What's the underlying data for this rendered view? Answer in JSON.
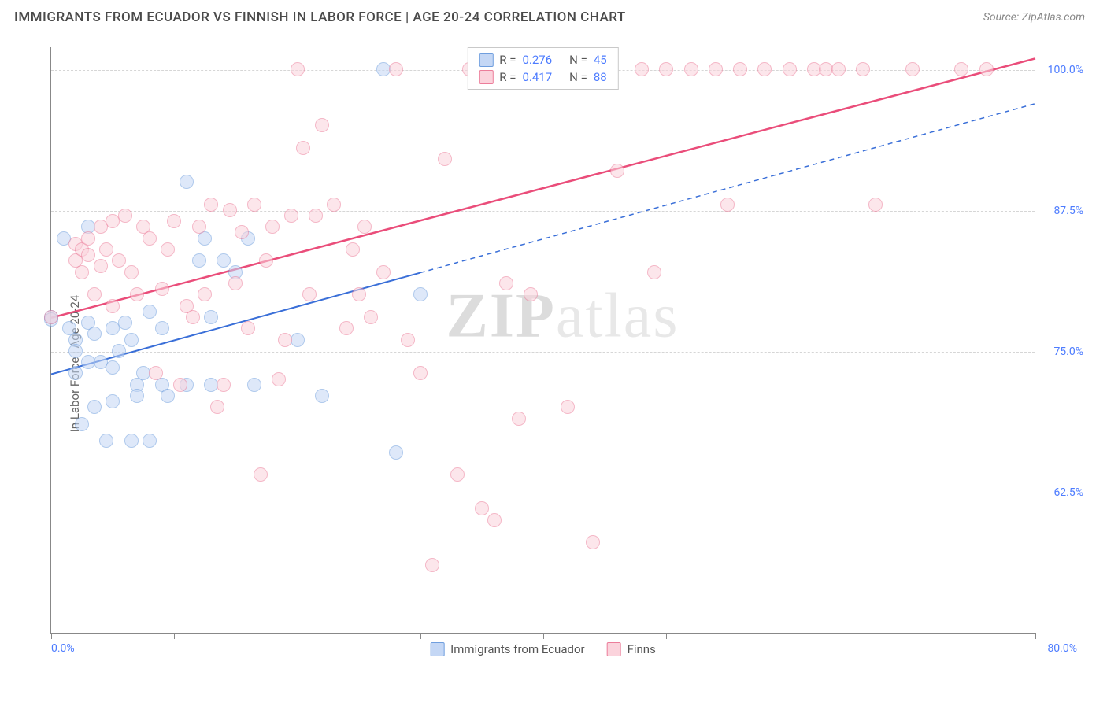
{
  "title": "IMMIGRANTS FROM ECUADOR VS FINNISH IN LABOR FORCE | AGE 20-24 CORRELATION CHART",
  "source": "Source: ZipAtlas.com",
  "ylabel": "In Labor Force | Age 20-24",
  "watermark_a": "ZIP",
  "watermark_b": "atlas",
  "chart": {
    "type": "scatter",
    "xlim": [
      0,
      80
    ],
    "ylim": [
      50,
      102
    ],
    "x_start_label": "0.0%",
    "x_end_label": "80.0%",
    "x_ticks": [
      0,
      10,
      20,
      30,
      40,
      50,
      60,
      70,
      80
    ],
    "y_gridlines": [
      62.5,
      75.0,
      87.5,
      100.0
    ],
    "y_labels": [
      "62.5%",
      "75.0%",
      "87.5%",
      "100.0%"
    ],
    "background_color": "#ffffff",
    "grid_color": "#d6d6d6",
    "axis_color": "#888888",
    "tick_label_color": "#4d7cff",
    "series": [
      {
        "key": "ecuador",
        "label": "Immigrants from Ecuador",
        "fill": "#c4d7f5",
        "stroke": "#6f9ede",
        "fill_opacity": 0.55,
        "line_color": "#3a6fd8",
        "line_width": 2,
        "marker_radius": 9,
        "trend": {
          "x1": 0,
          "y1": 73,
          "x2": 80,
          "y2": 97,
          "solid_until_x": 30
        },
        "stats": {
          "R": "0.276",
          "N": "45"
        },
        "points": [
          [
            0,
            78
          ],
          [
            0,
            77.8
          ],
          [
            1,
            85
          ],
          [
            1.5,
            77
          ],
          [
            2,
            76
          ],
          [
            2,
            73
          ],
          [
            2,
            75
          ],
          [
            2.5,
            68.5
          ],
          [
            3,
            86
          ],
          [
            3,
            74
          ],
          [
            3,
            77.5
          ],
          [
            3.5,
            70
          ],
          [
            3.5,
            76.5
          ],
          [
            4,
            74
          ],
          [
            4.5,
            67
          ],
          [
            5,
            77
          ],
          [
            5,
            73.5
          ],
          [
            5,
            70.5
          ],
          [
            5.5,
            75
          ],
          [
            6,
            77.5
          ],
          [
            6.5,
            67
          ],
          [
            6.5,
            76
          ],
          [
            7,
            72
          ],
          [
            7,
            71
          ],
          [
            7.5,
            73
          ],
          [
            8,
            67
          ],
          [
            8,
            78.5
          ],
          [
            9,
            77
          ],
          [
            9,
            72
          ],
          [
            9.5,
            71
          ],
          [
            11,
            90
          ],
          [
            11,
            72
          ],
          [
            12,
            83
          ],
          [
            12.5,
            85
          ],
          [
            13,
            72
          ],
          [
            13,
            78
          ],
          [
            14,
            83
          ],
          [
            15,
            82
          ],
          [
            16,
            85
          ],
          [
            16.5,
            72
          ],
          [
            20,
            76
          ],
          [
            22,
            71
          ],
          [
            27,
            100
          ],
          [
            28,
            66
          ],
          [
            30,
            80
          ]
        ]
      },
      {
        "key": "finns",
        "label": "Finns",
        "fill": "#fbd3dc",
        "stroke": "#ec7d9a",
        "fill_opacity": 0.55,
        "line_color": "#ea4d7a",
        "line_width": 2.5,
        "marker_radius": 9,
        "trend": {
          "x1": 0,
          "y1": 78,
          "x2": 80,
          "y2": 101,
          "solid_until_x": 80
        },
        "stats": {
          "R": "0.417",
          "N": "88"
        },
        "points": [
          [
            0,
            78
          ],
          [
            2,
            83
          ],
          [
            2,
            84.5
          ],
          [
            2.5,
            82
          ],
          [
            2.5,
            84
          ],
          [
            3,
            85
          ],
          [
            3,
            83.5
          ],
          [
            3.5,
            80
          ],
          [
            4,
            86
          ],
          [
            4,
            82.5
          ],
          [
            4.5,
            84
          ],
          [
            5,
            86.5
          ],
          [
            5,
            79
          ],
          [
            5.5,
            83
          ],
          [
            6,
            87
          ],
          [
            6.5,
            82
          ],
          [
            7,
            80
          ],
          [
            7.5,
            86
          ],
          [
            8,
            85
          ],
          [
            8.5,
            73
          ],
          [
            9,
            80.5
          ],
          [
            9.5,
            84
          ],
          [
            10,
            86.5
          ],
          [
            10.5,
            72
          ],
          [
            11,
            79
          ],
          [
            11.5,
            78
          ],
          [
            12,
            86
          ],
          [
            12.5,
            80
          ],
          [
            13,
            88
          ],
          [
            13.5,
            70
          ],
          [
            14,
            72
          ],
          [
            14.5,
            87.5
          ],
          [
            15,
            81
          ],
          [
            15.5,
            85.5
          ],
          [
            16,
            77
          ],
          [
            16.5,
            88
          ],
          [
            17,
            64
          ],
          [
            17.5,
            83
          ],
          [
            18,
            86
          ],
          [
            18.5,
            72.5
          ],
          [
            19,
            76
          ],
          [
            19.5,
            87
          ],
          [
            20,
            100
          ],
          [
            20.5,
            93
          ],
          [
            21,
            80
          ],
          [
            21.5,
            87
          ],
          [
            22,
            95
          ],
          [
            23,
            88
          ],
          [
            24,
            77
          ],
          [
            24.5,
            84
          ],
          [
            25,
            80
          ],
          [
            25.5,
            86
          ],
          [
            26,
            78
          ],
          [
            27,
            82
          ],
          [
            28,
            100
          ],
          [
            29,
            76
          ],
          [
            30,
            73
          ],
          [
            31,
            56
          ],
          [
            32,
            92
          ],
          [
            33,
            64
          ],
          [
            34,
            100
          ],
          [
            35,
            61
          ],
          [
            36,
            60
          ],
          [
            37,
            81
          ],
          [
            38,
            69
          ],
          [
            39,
            80
          ],
          [
            40,
            100
          ],
          [
            42,
            70
          ],
          [
            43,
            100
          ],
          [
            44,
            58
          ],
          [
            46,
            91
          ],
          [
            48,
            100
          ],
          [
            49,
            82
          ],
          [
            50,
            100
          ],
          [
            52,
            100
          ],
          [
            54,
            100
          ],
          [
            55,
            88
          ],
          [
            56,
            100
          ],
          [
            58,
            100
          ],
          [
            60,
            100
          ],
          [
            62,
            100
          ],
          [
            63,
            100
          ],
          [
            64,
            100
          ],
          [
            66,
            100
          ],
          [
            67,
            88
          ],
          [
            70,
            100
          ],
          [
            74,
            100
          ],
          [
            76,
            100
          ]
        ]
      }
    ],
    "legend_top": {
      "r_prefix": "R =",
      "n_prefix": "N ="
    }
  }
}
